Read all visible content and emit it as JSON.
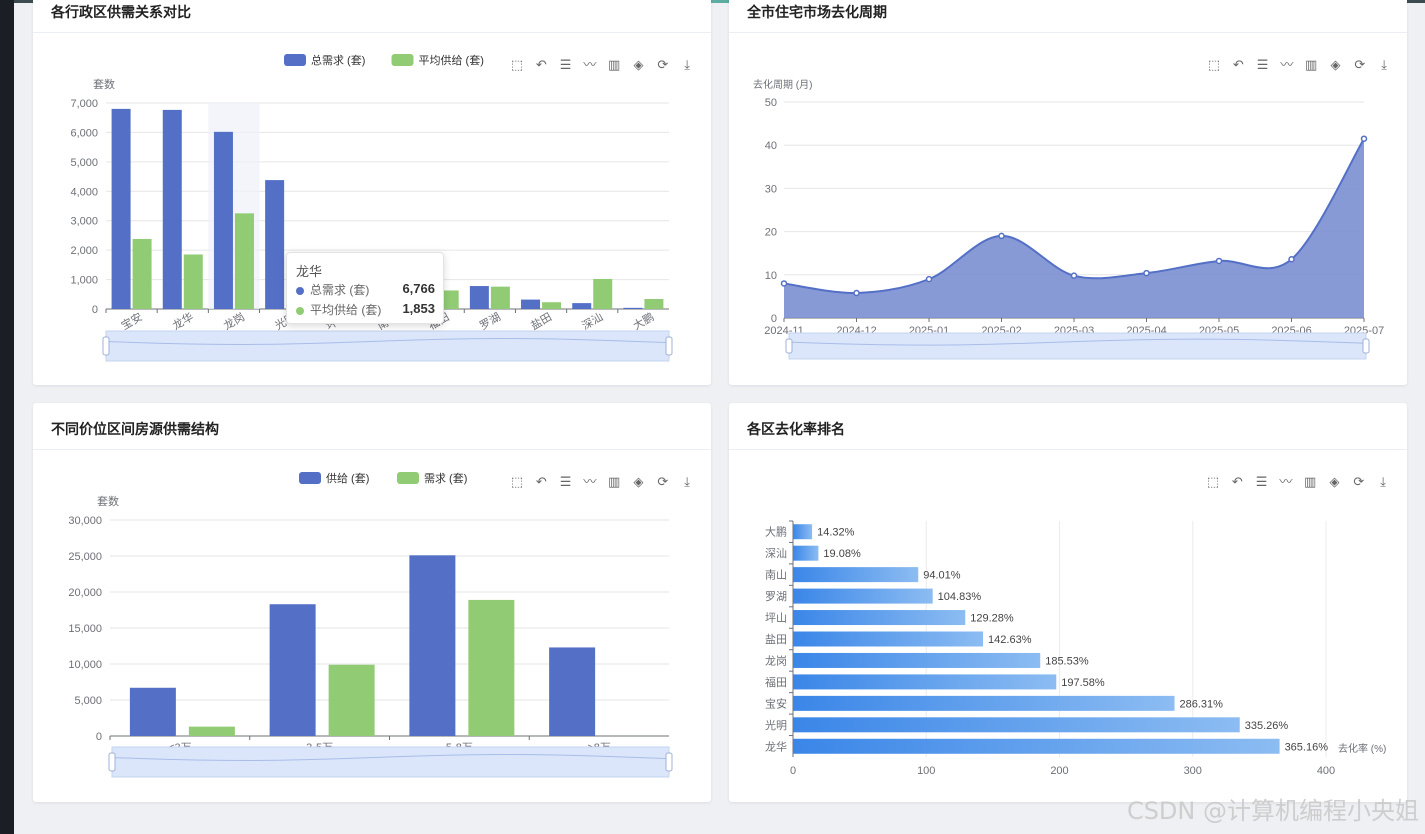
{
  "colors": {
    "blue": "#5470c6",
    "green": "#91cc75",
    "gradStart": "#3a86e8",
    "gradEnd": "#8cbcf2"
  },
  "toolbar_icons": [
    "zoom-icon",
    "zoom-reset-icon",
    "data-view-icon",
    "line-switch-icon",
    "bar-switch-icon",
    "stack-icon",
    "restore-icon",
    "download-icon"
  ],
  "watermark": "CSDN @计算机编程小央姐",
  "charts": {
    "supply_demand": {
      "title": "各行政区供需关系对比",
      "legend": [
        "总需求 (套)",
        "平均供给 (套)"
      ],
      "ylabel": "套数",
      "tooltip": {
        "title": "龙华",
        "rows": [
          {
            "name": "总需求 (套)",
            "value": "6,766"
          },
          {
            "name": "平均供给 (套)",
            "value": "1,853"
          }
        ]
      }
    },
    "cycle": {
      "title": "全市住宅市场去化周期",
      "ylabel": "去化周期 (月)"
    },
    "price": {
      "title": "不同价位区间房源供需结构",
      "legend": [
        "供给 (套)",
        "需求 (套)"
      ],
      "ylabel": "套数"
    },
    "rank": {
      "title": "各区去化率排名",
      "xlabel": "去化率 (%)"
    }
  },
  "chart_data": [
    {
      "type": "bar",
      "title": "各行政区供需关系对比",
      "ylabel": "套数",
      "ylim": [
        0,
        7000
      ],
      "yticks": [
        "0",
        "1,000",
        "2,000",
        "3,000",
        "4,000",
        "5,000",
        "6,000",
        "7,000"
      ],
      "categories": [
        "宝安",
        "龙华",
        "龙岗",
        "光明",
        "坪山",
        "南山",
        "福田",
        "罗湖",
        "盐田",
        "深汕",
        "大鹏"
      ],
      "series": [
        {
          "name": "总需求 (套)",
          "values": [
            6800,
            6766,
            6020,
            4380,
            1200,
            1000,
            600,
            780,
            320,
            200,
            40
          ]
        },
        {
          "name": "平均供给 (套)",
          "values": [
            2380,
            1853,
            3250,
            1300,
            1000,
            900,
            630,
            760,
            230,
            1020,
            340
          ]
        }
      ],
      "legend": "top-center",
      "grid": true
    },
    {
      "type": "area",
      "title": "全市住宅市场去化周期",
      "ylabel": "去化周期 (月)",
      "ylim": [
        0,
        50
      ],
      "yticks": [
        "0",
        "10",
        "20",
        "30",
        "40",
        "50"
      ],
      "x": [
        "2024-11",
        "2024-12",
        "2025-01",
        "2025-02",
        "2025-03",
        "2025-04",
        "2025-05",
        "2025-06",
        "2025-07"
      ],
      "values": [
        8.0,
        5.8,
        9.0,
        19.0,
        9.8,
        10.4,
        13.2,
        13.6,
        41.5
      ],
      "grid": true
    },
    {
      "type": "bar",
      "title": "不同价位区间房源供需结构",
      "ylabel": "套数",
      "ylim": [
        0,
        30000
      ],
      "yticks": [
        "0",
        "5,000",
        "10,000",
        "15,000",
        "20,000",
        "25,000",
        "30,000"
      ],
      "categories": [
        "<3万",
        "3-5万",
        "5-8万",
        ">8万"
      ],
      "series": [
        {
          "name": "供给 (套)",
          "values": [
            6700,
            18300,
            25100,
            12300
          ]
        },
        {
          "name": "需求 (套)",
          "values": [
            1300,
            9900,
            18900,
            0
          ]
        }
      ],
      "legend": "top-center",
      "grid": true
    },
    {
      "type": "bar",
      "orientation": "horizontal",
      "title": "各区去化率排名",
      "xlabel": "去化率 (%)",
      "xlim": [
        0,
        400
      ],
      "xticks": [
        "0",
        "100",
        "200",
        "300",
        "400"
      ],
      "categories": [
        "龙华",
        "光明",
        "宝安",
        "福田",
        "龙岗",
        "盐田",
        "坪山",
        "罗湖",
        "南山",
        "深汕",
        "大鹏"
      ],
      "values": [
        365.16,
        335.26,
        286.31,
        197.58,
        185.53,
        142.63,
        129.28,
        104.83,
        94.01,
        19.08,
        14.32
      ],
      "labels": [
        "365.16%",
        "335.26%",
        "286.31%",
        "197.58%",
        "185.53%",
        "142.63%",
        "129.28%",
        "104.83%",
        "94.01%",
        "19.08%",
        "14.32%"
      ],
      "grid": true
    }
  ]
}
